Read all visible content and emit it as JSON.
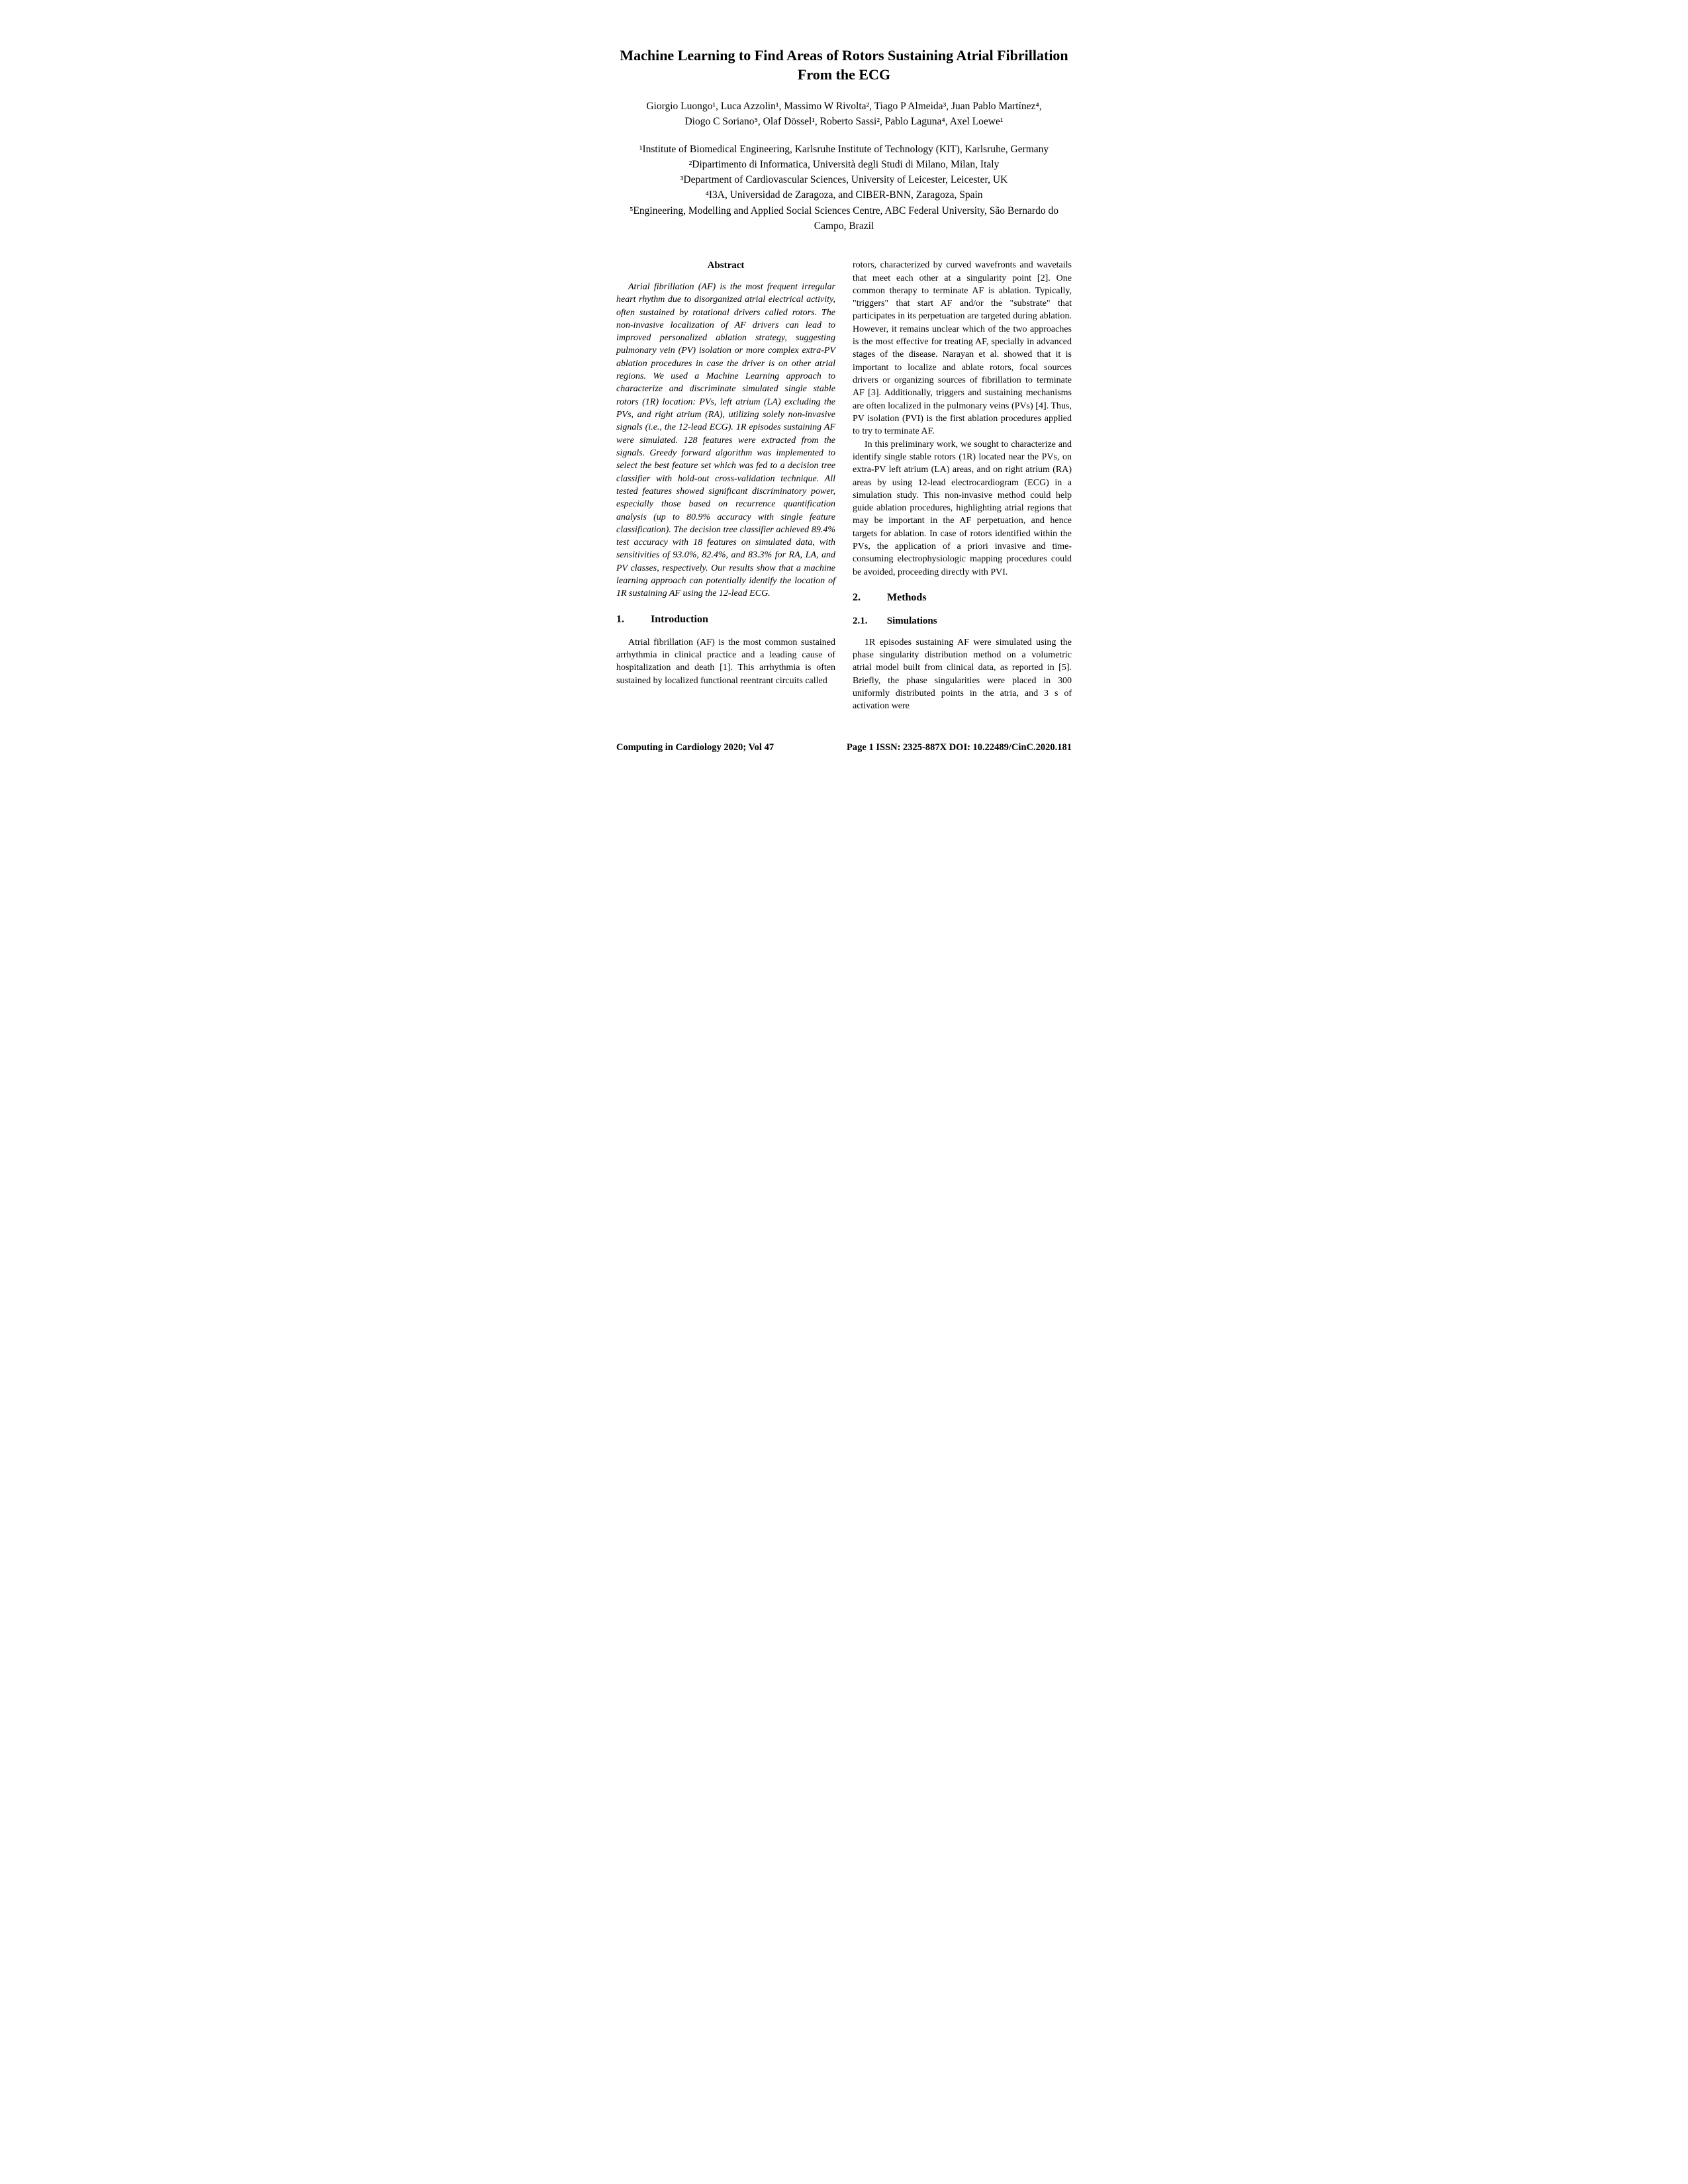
{
  "title": "Machine Learning to Find Areas of Rotors Sustaining Atrial Fibrillation From the ECG",
  "authors_line1": "Giorgio Luongo¹, Luca Azzolin¹, Massimo W Rivolta², Tiago P Almeida³, Juan Pablo Martínez⁴,",
  "authors_line2": "Diogo C Soriano⁵, Olaf Dössel¹, Roberto Sassi², Pablo Laguna⁴, Axel Loewe¹",
  "affiliations": {
    "a1": "¹Institute of Biomedical Engineering, Karlsruhe Institute of Technology (KIT), Karlsruhe, Germany",
    "a2": "²Dipartimento di Informatica, Università degli Studi di Milano, Milan, Italy",
    "a3": "³Department of Cardiovascular Sciences, University of Leicester, Leicester, UK",
    "a4": "⁴I3A, Universidad de Zaragoza, and CIBER-BNN, Zaragoza, Spain",
    "a5": "⁵Engineering, Modelling and Applied Social Sciences Centre, ABC Federal University, São Bernardo do Campo, Brazil"
  },
  "abstract_heading": "Abstract",
  "abstract": "Atrial fibrillation (AF) is the most frequent irregular heart rhythm due to disorganized atrial electrical activity, often sustained by rotational drivers called rotors. The non-invasive localization of AF drivers can lead to improved personalized ablation strategy, suggesting pulmonary vein (PV) isolation or more complex extra-PV ablation procedures in case the driver is on other atrial regions. We used a Machine Learning approach to characterize and discriminate simulated single stable rotors (1R) location: PVs, left atrium (LA) excluding the PVs, and right atrium (RA), utilizing solely non-invasive signals (i.e., the 12-lead ECG). 1R episodes sustaining AF were simulated. 128 features were extracted from the signals. Greedy forward algorithm was implemented to select the best feature set which was fed to a decision tree classifier with hold-out cross-validation technique. All tested features showed significant discriminatory power, especially those based on recurrence quantification analysis (up to 80.9% accuracy with single feature classification). The decision tree classifier achieved 89.4% test accuracy with 18 features on simulated data, with sensitivities of 93.0%, 82.4%, and 83.3% for RA, LA, and PV classes, respectively. Our results show that a machine learning approach can potentially identify the location of 1R sustaining AF using the 12-lead ECG.",
  "sections": {
    "s1_num": "1.",
    "s1_title": "Introduction",
    "s1_p1": "Atrial fibrillation (AF) is the most common sustained arrhythmia in clinical practice and a leading cause of hospitalization and death [1]. This arrhythmia is often sustained by localized functional reentrant circuits called",
    "s1_p1b": "rotors, characterized by curved wavefronts and wavetails that meet each other at a singularity point [2]. One common therapy to terminate AF is ablation. Typically, \"triggers\" that start AF and/or the \"substrate\" that participates in its perpetuation are targeted during ablation. However, it remains unclear which of the two approaches is the most effective for treating AF, specially in advanced stages of the disease. Narayan et al. showed that it is important to localize and ablate rotors, focal sources drivers or organizing sources of fibrillation to terminate AF [3]. Additionally, triggers and sustaining mechanisms are often localized in the pulmonary veins (PVs) [4]. Thus, PV isolation (PVI) is the first ablation procedures applied to try to terminate AF.",
    "s1_p2": "In this preliminary work, we sought to characterize and identify single stable rotors (1R) located near the PVs, on extra-PV left atrium (LA) areas, and on right atrium (RA) areas by using 12-lead electrocardiogram (ECG) in a simulation study. This non-invasive method could help guide ablation procedures, highlighting atrial regions that may be important in the AF perpetuation, and hence targets for ablation. In case of rotors identified within the PVs, the application of a priori invasive and time-consuming electrophysiologic mapping procedures could be avoided, proceeding directly with PVI.",
    "s2_num": "2.",
    "s2_title": "Methods",
    "s21_num": "2.1.",
    "s21_title": "Simulations",
    "s21_p1": "1R episodes sustaining AF were simulated using the phase singularity distribution method on a volumetric atrial model built from clinical data, as reported in [5]. Briefly, the phase singularities were placed in 300 uniformly distributed points in the atria, and 3 s of activation were"
  },
  "footer": {
    "left": "Computing in Cardiology 2020; Vol 47",
    "right": "Page 1 ISSN: 2325-887X DOI: 10.22489/CinC.2020.181"
  }
}
